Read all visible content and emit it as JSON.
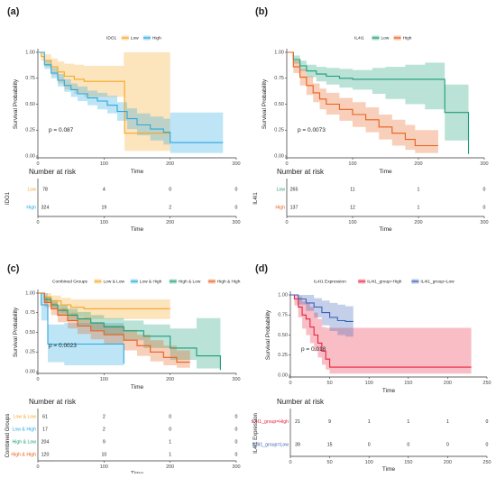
{
  "chart_data": [
    {
      "panel_label": "(a)",
      "type": "line",
      "subtype": "kaplan-meier",
      "legend_title": "IDO1",
      "ylabel": "Survival Probability",
      "xlabel": "Time",
      "xlim": [
        0,
        300
      ],
      "ylim": [
        0,
        1
      ],
      "xticks": [
        "0",
        "100",
        "200",
        "300"
      ],
      "yticks": [
        "0.00",
        "0.25",
        "0.50",
        "0.75",
        "1.00"
      ],
      "pvalue": "p = 0.087",
      "series": [
        {
          "name": "Low",
          "color": "#F5A623",
          "x": [
            0,
            5,
            10,
            20,
            30,
            40,
            55,
            70,
            90,
            110,
            130,
            131,
            200
          ],
          "y": [
            1.0,
            0.96,
            0.92,
            0.86,
            0.81,
            0.77,
            0.74,
            0.72,
            0.72,
            0.72,
            0.72,
            0.22,
            0.22
          ],
          "lo": [
            1.0,
            0.92,
            0.86,
            0.78,
            0.7,
            0.64,
            0.6,
            0.57,
            0.57,
            0.57,
            0.57,
            0.05,
            0.05
          ],
          "hi": [
            1.0,
            1.0,
            0.98,
            0.94,
            0.91,
            0.89,
            0.88,
            0.87,
            0.87,
            0.87,
            1.0,
            1.0,
            1.0
          ]
        },
        {
          "name": "High",
          "color": "#29A8E0",
          "x": [
            0,
            10,
            20,
            30,
            40,
            50,
            60,
            75,
            90,
            105,
            120,
            135,
            150,
            170,
            190,
            200,
            280
          ],
          "y": [
            1.0,
            0.88,
            0.8,
            0.73,
            0.68,
            0.64,
            0.6,
            0.56,
            0.53,
            0.49,
            0.43,
            0.36,
            0.3,
            0.26,
            0.23,
            0.13,
            0.13
          ],
          "lo": [
            1.0,
            0.84,
            0.75,
            0.67,
            0.62,
            0.57,
            0.53,
            0.49,
            0.45,
            0.41,
            0.34,
            0.26,
            0.2,
            0.15,
            0.11,
            0.03,
            0.03
          ],
          "hi": [
            1.0,
            0.92,
            0.85,
            0.79,
            0.74,
            0.7,
            0.67,
            0.63,
            0.61,
            0.58,
            0.52,
            0.46,
            0.41,
            0.38,
            0.36,
            0.42,
            0.42
          ]
        }
      ],
      "risk_table": {
        "title": "Number at risk",
        "ylabel": "IDO1",
        "xlabel": "Time",
        "xticks": [
          "0",
          "100",
          "200",
          "300"
        ],
        "rows": [
          {
            "label": "Low",
            "color": "#F5A623",
            "values": [
              "78",
              "4",
              "0",
              "0"
            ]
          },
          {
            "label": "High",
            "color": "#29A8E0",
            "values": [
              "324",
              "19",
              "2",
              "0"
            ]
          }
        ]
      }
    },
    {
      "panel_label": "(b)",
      "type": "line",
      "subtype": "kaplan-meier",
      "legend_title": "IL4I1",
      "ylabel": "Survival Probability",
      "xlabel": "Time",
      "xlim": [
        0,
        300
      ],
      "ylim": [
        0,
        1
      ],
      "xticks": [
        "0",
        "100",
        "200",
        "300"
      ],
      "yticks": [
        "0.00",
        "0.25",
        "0.50",
        "0.75",
        "1.00"
      ],
      "pvalue": "p = 0.0073",
      "series": [
        {
          "name": "Low",
          "color": "#1B9E77",
          "x": [
            0,
            10,
            20,
            30,
            45,
            60,
            80,
            100,
            130,
            150,
            180,
            210,
            240,
            275,
            276
          ],
          "y": [
            1.0,
            0.93,
            0.87,
            0.82,
            0.79,
            0.77,
            0.75,
            0.74,
            0.74,
            0.74,
            0.74,
            0.74,
            0.42,
            0.42,
            0.02
          ],
          "lo": [
            1.0,
            0.89,
            0.82,
            0.76,
            0.72,
            0.69,
            0.66,
            0.64,
            0.6,
            0.55,
            0.5,
            0.45,
            0.15,
            0.15,
            0.02
          ],
          "hi": [
            1.0,
            0.97,
            0.92,
            0.88,
            0.86,
            0.85,
            0.84,
            0.83,
            0.85,
            0.86,
            0.88,
            0.9,
            0.69,
            0.69,
            0.02
          ]
        },
        {
          "name": "High",
          "color": "#E8601C",
          "x": [
            0,
            10,
            20,
            30,
            40,
            50,
            60,
            80,
            100,
            120,
            140,
            160,
            180,
            195,
            230
          ],
          "y": [
            1.0,
            0.86,
            0.76,
            0.68,
            0.61,
            0.55,
            0.5,
            0.45,
            0.4,
            0.35,
            0.28,
            0.22,
            0.16,
            0.1,
            0.1
          ],
          "lo": [
            1.0,
            0.8,
            0.68,
            0.59,
            0.52,
            0.45,
            0.4,
            0.34,
            0.28,
            0.23,
            0.16,
            0.1,
            0.06,
            0.03,
            0.03
          ],
          "hi": [
            1.0,
            0.92,
            0.84,
            0.77,
            0.7,
            0.65,
            0.61,
            0.56,
            0.52,
            0.47,
            0.4,
            0.35,
            0.3,
            0.25,
            0.25
          ]
        }
      ],
      "risk_table": {
        "title": "Number at risk",
        "ylabel": "IL4I1",
        "xlabel": "Time",
        "xticks": [
          "0",
          "100",
          "200",
          "300"
        ],
        "rows": [
          {
            "label": "Low",
            "color": "#1B9E77",
            "values": [
              "265",
              "11",
              "1",
              "0"
            ]
          },
          {
            "label": "High",
            "color": "#E8601C",
            "values": [
              "137",
              "12",
              "1",
              "0"
            ]
          }
        ]
      }
    },
    {
      "panel_label": "(c)",
      "type": "line",
      "subtype": "kaplan-meier",
      "legend_title": "Combined Groups",
      "ylabel": "Survival Probability",
      "xlabel": "Time",
      "xlim": [
        0,
        300
      ],
      "ylim": [
        0,
        1
      ],
      "xticks": [
        "0",
        "100",
        "200",
        "300"
      ],
      "yticks": [
        "0.00",
        "0.25",
        "0.50",
        "0.75",
        "1.00"
      ],
      "pvalue": "p = 0.0023",
      "series": [
        {
          "name": "Low & Low",
          "color": "#F5A623",
          "x": [
            0,
            10,
            20,
            35,
            50,
            70,
            100,
            130,
            200
          ],
          "y": [
            1.0,
            0.95,
            0.9,
            0.85,
            0.82,
            0.8,
            0.8,
            0.8,
            0.8
          ],
          "lo": [
            1.0,
            0.9,
            0.82,
            0.75,
            0.7,
            0.67,
            0.67,
            0.67,
            0.67
          ],
          "hi": [
            1.0,
            1.0,
            0.97,
            0.94,
            0.92,
            0.92,
            0.92,
            0.92,
            0.92
          ]
        },
        {
          "name": "Low & High",
          "color": "#29A8E0",
          "x": [
            0,
            5,
            15,
            40,
            80,
            115,
            130
          ],
          "y": [
            1.0,
            0.85,
            0.35,
            0.35,
            0.35,
            0.35,
            0.1
          ],
          "lo": [
            1.0,
            0.65,
            0.12,
            0.08,
            0.08,
            0.08,
            0.02
          ],
          "hi": [
            1.0,
            1.0,
            0.6,
            0.62,
            0.62,
            0.62,
            0.4
          ]
        },
        {
          "name": "High & Low",
          "color": "#1B9E77",
          "x": [
            0,
            10,
            20,
            30,
            45,
            60,
            80,
            100,
            130,
            160,
            200,
            240,
            275,
            276
          ],
          "y": [
            1.0,
            0.92,
            0.85,
            0.78,
            0.72,
            0.67,
            0.62,
            0.57,
            0.52,
            0.45,
            0.3,
            0.2,
            0.2,
            0.02
          ],
          "lo": [
            1.0,
            0.88,
            0.8,
            0.72,
            0.65,
            0.59,
            0.53,
            0.47,
            0.4,
            0.3,
            0.15,
            0.04,
            0.04,
            0.02
          ],
          "hi": [
            1.0,
            0.96,
            0.91,
            0.85,
            0.8,
            0.76,
            0.72,
            0.68,
            0.65,
            0.6,
            0.55,
            0.68,
            0.68,
            0.02
          ]
        },
        {
          "name": "High & High",
          "color": "#E8601C",
          "x": [
            0,
            10,
            20,
            30,
            45,
            60,
            80,
            100,
            130,
            150,
            170,
            190,
            210,
            230
          ],
          "y": [
            1.0,
            0.88,
            0.8,
            0.72,
            0.65,
            0.58,
            0.52,
            0.47,
            0.4,
            0.33,
            0.25,
            0.18,
            0.12,
            0.12
          ],
          "lo": [
            1.0,
            0.82,
            0.72,
            0.63,
            0.55,
            0.48,
            0.41,
            0.35,
            0.27,
            0.2,
            0.13,
            0.08,
            0.05,
            0.05
          ],
          "hi": [
            1.0,
            0.94,
            0.88,
            0.81,
            0.75,
            0.69,
            0.63,
            0.59,
            0.53,
            0.47,
            0.4,
            0.33,
            0.27,
            0.27
          ]
        }
      ],
      "risk_table": {
        "title": "Number at risk",
        "ylabel": "Combined Groups",
        "xlabel": "Time",
        "xticks": [
          "0",
          "100",
          "200",
          "300"
        ],
        "rows": [
          {
            "label": "Low & Low",
            "color": "#F5A623",
            "values": [
              "61",
              "2",
              "0",
              "0"
            ]
          },
          {
            "label": "Low & High",
            "color": "#29A8E0",
            "values": [
              "17",
              "2",
              "0",
              "0"
            ]
          },
          {
            "label": "High & Low",
            "color": "#1B9E77",
            "values": [
              "204",
              "9",
              "1",
              "0"
            ]
          },
          {
            "label": "High & High",
            "color": "#E8601C",
            "values": [
              "120",
              "10",
              "1",
              "0"
            ]
          }
        ]
      }
    },
    {
      "panel_label": "(d)",
      "type": "line",
      "subtype": "kaplan-meier",
      "legend_title": "IL4I1 Expression",
      "ylabel": "Survival Probability",
      "xlabel": "Time",
      "xlim": [
        0,
        250
      ],
      "ylim": [
        0,
        1
      ],
      "xticks": [
        "0",
        "50",
        "100",
        "150",
        "200",
        "250"
      ],
      "yticks": [
        "0.00",
        "0.25",
        "0.50",
        "0.75",
        "1.00"
      ],
      "pvalue": "p = 0.018",
      "series": [
        {
          "name": "IL4I1_group=High",
          "color": "#E8233F",
          "x": [
            0,
            5,
            10,
            15,
            20,
            25,
            30,
            35,
            40,
            45,
            50,
            230
          ],
          "y": [
            1.0,
            0.95,
            0.85,
            0.75,
            0.7,
            0.6,
            0.5,
            0.4,
            0.3,
            0.2,
            0.1,
            0.1
          ],
          "lo": [
            1.0,
            0.87,
            0.72,
            0.58,
            0.5,
            0.4,
            0.3,
            0.22,
            0.13,
            0.07,
            0.02,
            0.02
          ],
          "hi": [
            1.0,
            1.0,
            0.98,
            0.92,
            0.9,
            0.85,
            0.78,
            0.7,
            0.6,
            0.59,
            0.59,
            0.59
          ]
        },
        {
          "name": "IL4I1_group=Low",
          "color": "#3A62B8",
          "x": [
            0,
            10,
            20,
            30,
            40,
            50,
            60,
            70,
            80
          ],
          "y": [
            1.0,
            0.95,
            0.9,
            0.85,
            0.78,
            0.72,
            0.68,
            0.67,
            0.67
          ],
          "lo": [
            1.0,
            0.88,
            0.8,
            0.72,
            0.62,
            0.55,
            0.5,
            0.48,
            0.48
          ],
          "hi": [
            1.0,
            1.0,
            1.0,
            0.96,
            0.93,
            0.9,
            0.88,
            0.86,
            0.86
          ]
        }
      ],
      "risk_table": {
        "title": "Number at risk",
        "ylabel": "IL4I1 Expression",
        "xlabel": "Time",
        "xticks": [
          "0",
          "50",
          "100",
          "150",
          "200",
          "250"
        ],
        "rows": [
          {
            "label": "IL4I1_group=High",
            "color": "#E8233F",
            "values": [
              "21",
              "9",
              "1",
              "1",
              "1",
              "0"
            ]
          },
          {
            "label": "IL4I1_group=Low",
            "color": "#3A62B8",
            "values": [
              "39",
              "15",
              "0",
              "0",
              "0",
              "0"
            ]
          }
        ]
      }
    }
  ]
}
